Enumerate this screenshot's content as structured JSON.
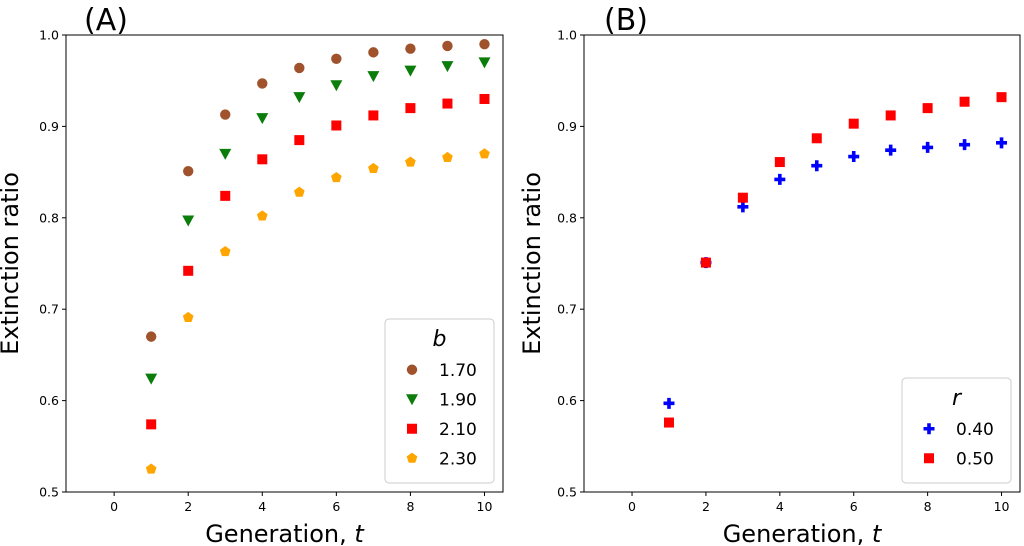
{
  "chart_data": [
    {
      "type": "scatter",
      "panel_label": "(A)",
      "xlabel": "Generation, ",
      "xlabel_var": "t",
      "ylabel": "Extinction ratio",
      "xlim": [
        -1.3,
        10.5
      ],
      "ylim": [
        0.5,
        1.0
      ],
      "xticks": [
        "0",
        "2",
        "4",
        "6",
        "8",
        "10"
      ],
      "yticks": [
        "0.5",
        "0.6",
        "0.7",
        "0.8",
        "0.9",
        "1.0"
      ],
      "legend": {
        "title": "b",
        "placement": "lower-right"
      },
      "x": [
        1,
        2,
        3,
        4,
        5,
        6,
        7,
        8,
        9,
        10
      ],
      "series": [
        {
          "name": "1.70",
          "marker": "circle",
          "color": "#a0522d",
          "values": [
            0.67,
            0.851,
            0.913,
            0.947,
            0.964,
            0.974,
            0.981,
            0.985,
            0.988,
            0.99
          ]
        },
        {
          "name": "1.90",
          "marker": "triangle-down",
          "color": "#0a7d0a",
          "values": [
            0.624,
            0.797,
            0.87,
            0.909,
            0.932,
            0.945,
            0.955,
            0.961,
            0.966,
            0.97
          ]
        },
        {
          "name": "2.10",
          "marker": "square",
          "color": "#ff0000",
          "values": [
            0.574,
            0.742,
            0.824,
            0.864,
            0.885,
            0.901,
            0.912,
            0.92,
            0.925,
            0.93
          ]
        },
        {
          "name": "2.30",
          "marker": "pentagon",
          "color": "#ffa500",
          "values": [
            0.525,
            0.691,
            0.763,
            0.802,
            0.828,
            0.844,
            0.854,
            0.861,
            0.866,
            0.87
          ]
        }
      ]
    },
    {
      "type": "scatter",
      "panel_label": "(B)",
      "xlabel": "Generation, ",
      "xlabel_var": "t",
      "ylabel": "Extinction ratio",
      "xlim": [
        -1.3,
        10.5
      ],
      "ylim": [
        0.5,
        1.0
      ],
      "xticks": [
        "0",
        "2",
        "4",
        "6",
        "8",
        "10"
      ],
      "yticks": [
        "0.5",
        "0.6",
        "0.7",
        "0.8",
        "0.9",
        "1.0"
      ],
      "legend": {
        "title": "r",
        "placement": "lower-right"
      },
      "x": [
        1,
        2,
        3,
        4,
        5,
        6,
        7,
        8,
        9,
        10
      ],
      "series": [
        {
          "name": "0.40",
          "marker": "plus",
          "color": "#0000ff",
          "values": [
            0.597,
            0.751,
            0.812,
            0.842,
            0.857,
            0.867,
            0.874,
            0.877,
            0.88,
            0.882
          ]
        },
        {
          "name": "0.50",
          "marker": "square",
          "color": "#ff0000",
          "values": [
            0.576,
            0.751,
            0.822,
            0.861,
            0.887,
            0.903,
            0.912,
            0.92,
            0.927,
            0.932
          ]
        }
      ]
    }
  ]
}
